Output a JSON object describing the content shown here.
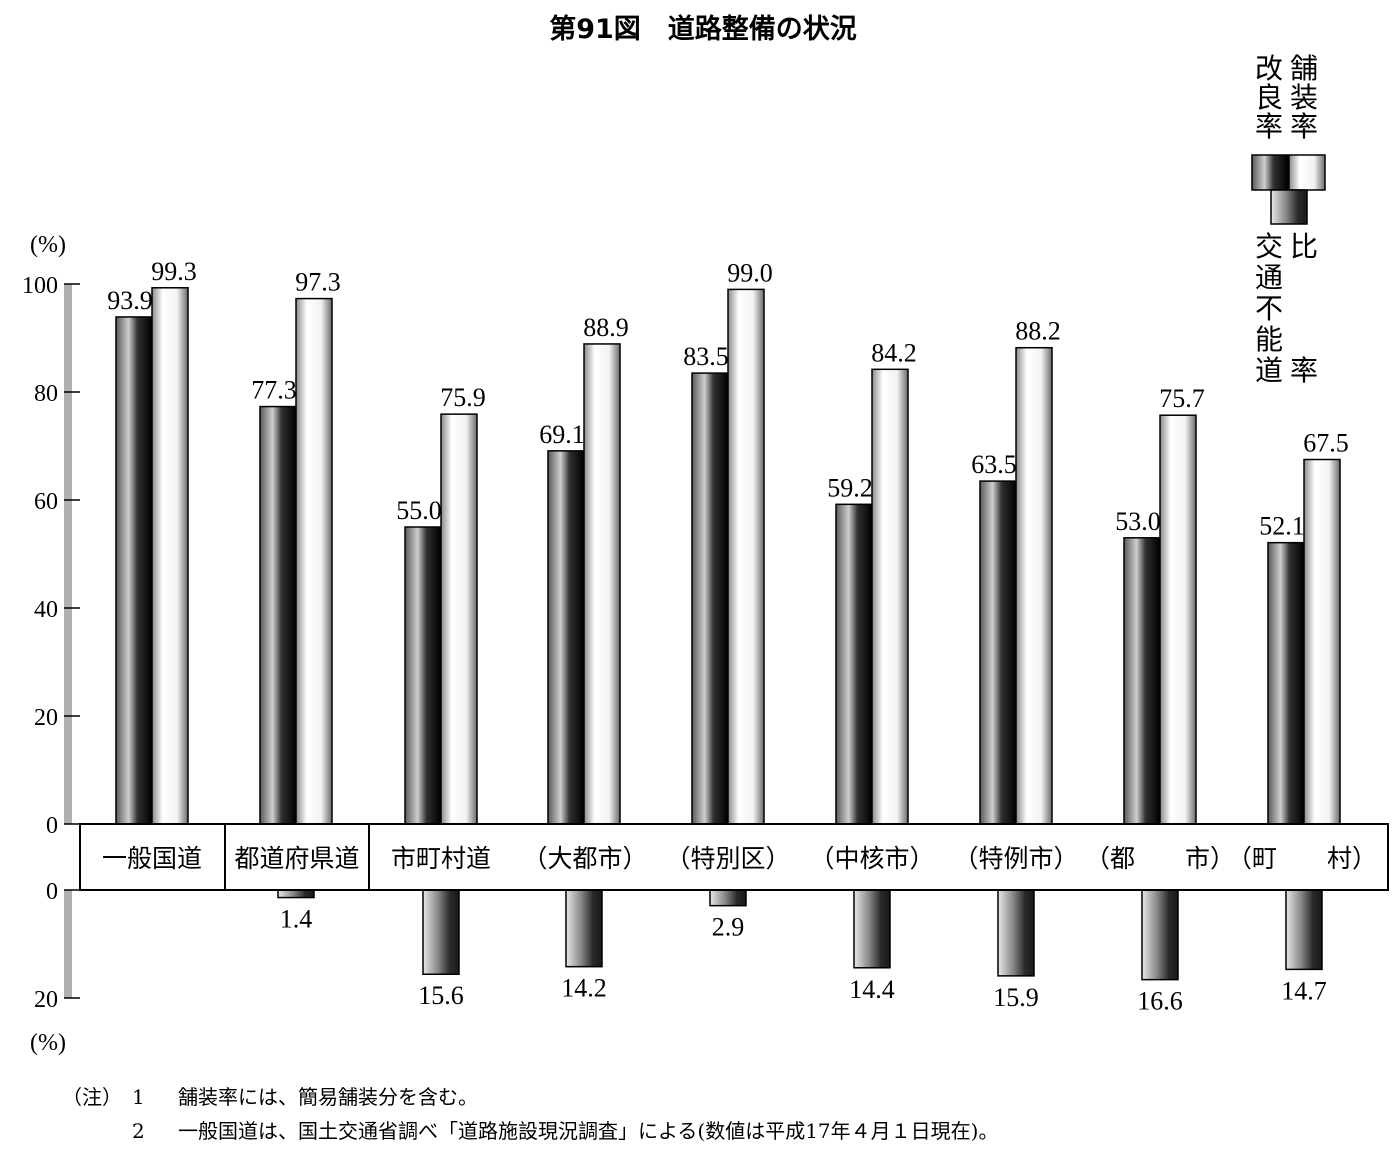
{
  "title": "第91図　道路整備の状況",
  "unit_top": "(%)",
  "unit_bottom": "(%)",
  "legend": {
    "paved": [
      "舗",
      "装",
      "率"
    ],
    "improved": [
      "改",
      "良",
      "率"
    ],
    "impassable": [
      "交",
      "通",
      "不",
      "能",
      "道"
    ],
    "impassable_ratio": [
      "比",
      "率"
    ]
  },
  "notes": {
    "prefix": "（注）",
    "n1": "1",
    "t1": "舗装率には、簡易舗装分を含む。",
    "n2": "2",
    "t2": "一般国道は、国土交通省調べ「道路施設現況調査」による(数値は平成17年４月１日現在)。"
  },
  "colors": {
    "dark_bar": "#1a1a1a",
    "light_bar": "#f5f5f5",
    "axis_bar": "#b0b0b0"
  },
  "chart_data": {
    "type": "bar",
    "categories": [
      "一般国道",
      "都道府県道",
      "市町村道",
      "（大都市）",
      "（特別区）",
      "（中核市）",
      "（特例市）",
      "（都　　市）",
      "（町　　村）"
    ],
    "series": [
      {
        "name": "改良率",
        "values": [
          93.9,
          77.3,
          55.0,
          69.1,
          83.5,
          59.2,
          63.5,
          53.0,
          52.1
        ],
        "labels": [
          "93.9",
          "77.3",
          "55.0",
          "69.1",
          "83.5",
          "59.2",
          "63.5",
          "53.0",
          "52.1"
        ]
      },
      {
        "name": "舗装率",
        "values": [
          99.3,
          97.3,
          75.9,
          88.9,
          99.0,
          84.2,
          88.2,
          75.7,
          67.5
        ],
        "labels": [
          "99.3",
          "97.3",
          "75.9",
          "88.9",
          "99.0",
          "84.2",
          "88.2",
          "75.7",
          "67.5"
        ]
      },
      {
        "name": "交通不能道比率",
        "values": [
          null,
          1.4,
          15.6,
          14.2,
          2.9,
          14.4,
          15.9,
          16.6,
          14.7
        ],
        "labels": [
          "",
          "1.4",
          "15.6",
          "14.2",
          "2.9",
          "14.4",
          "15.9",
          "16.6",
          "14.7"
        ]
      }
    ],
    "ylim_top": [
      0,
      100
    ],
    "yticks_top": [
      "0",
      "20",
      "40",
      "60",
      "80",
      "100"
    ],
    "ylim_bottom": [
      0,
      20
    ],
    "yticks_bottom": [
      "0",
      "20"
    ],
    "grid": false
  }
}
